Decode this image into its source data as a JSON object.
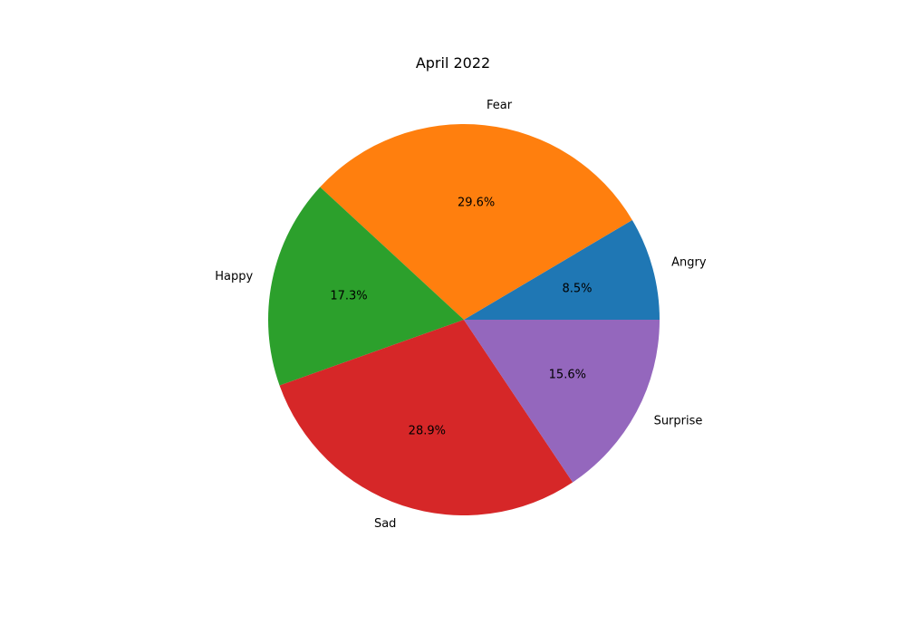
{
  "chart_data": {
    "type": "pie",
    "title": "April 2022",
    "labels": [
      "Angry",
      "Fear",
      "Happy",
      "Sad",
      "Surprise"
    ],
    "values": [
      8.5,
      29.6,
      17.3,
      28.9,
      15.6
    ],
    "percent_labels": [
      "8.5%",
      "29.6%",
      "17.3%",
      "28.9%",
      "15.6%"
    ],
    "colors": [
      "#1f77b4",
      "#ff7f0e",
      "#2ca02c",
      "#d62728",
      "#9467bd"
    ],
    "start_angle_deg": 0,
    "direction": "counterclockwise",
    "legend": "none"
  }
}
